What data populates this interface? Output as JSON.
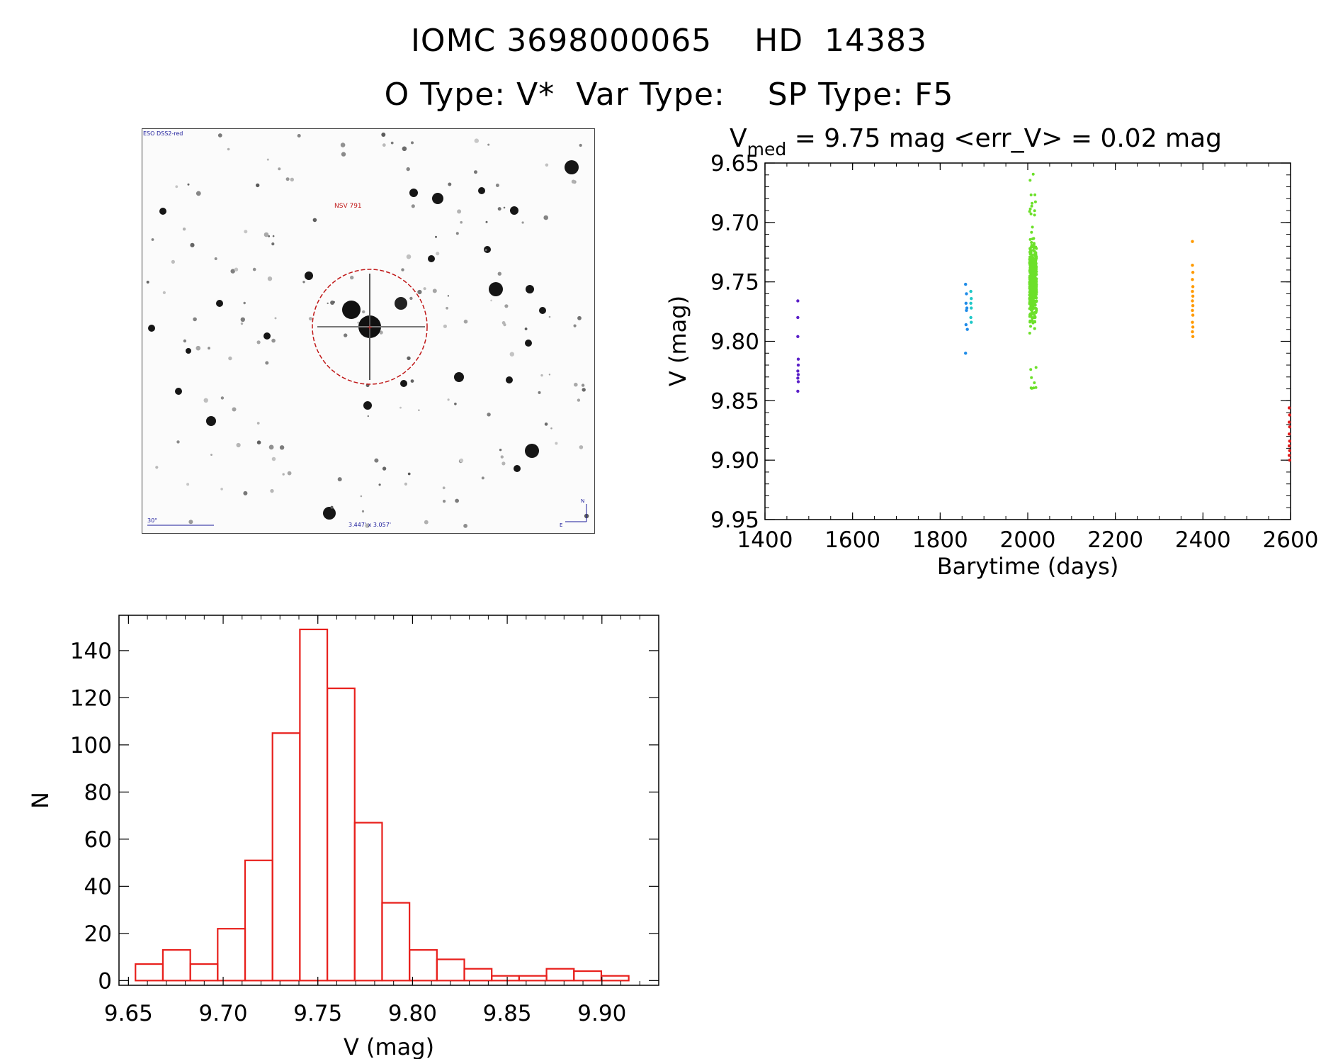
{
  "header": {
    "line1": "IOMC 3698000065    HD  14383",
    "line2": "O Type: V*  Var Type:    SP Type: F5"
  },
  "image_panel": {
    "survey_label": "ESO DSS2-red",
    "object_label": "NSV 791",
    "scale_label": "30\"",
    "fov_label": "3.447' x 3.057'",
    "north_label": "N",
    "east_label": "E"
  },
  "colors": {
    "histogram": "#e8201c",
    "circle": "#c01818",
    "survey_text": "#1a1a9a"
  },
  "chart_data": [
    {
      "type": "scatter",
      "title": "V",
      "title_sub": "med",
      "title_rest": " = 9.75 mag <err_V> = 0.02 mag",
      "xlabel": "Barytime (days)",
      "ylabel": "V (mag)",
      "xlim": [
        1400,
        2600
      ],
      "ylim": [
        9.95,
        9.65
      ],
      "y_inverted": true,
      "x_ticks": [
        "1400",
        "1600",
        "1800",
        "2000",
        "2200",
        "2400",
        "2600"
      ],
      "y_ticks": [
        "9.65",
        "9.70",
        "9.75",
        "9.80",
        "9.85",
        "9.90",
        "9.95"
      ],
      "series": [
        {
          "color": "#5a1fc8",
          "x": [
            1475,
            1475,
            1475,
            1476,
            1476,
            1475,
            1476,
            1475,
            1476,
            1475
          ],
          "y": [
            9.766,
            9.78,
            9.796,
            9.815,
            9.82,
            9.825,
            9.828,
            9.831,
            9.834,
            9.842
          ]
        },
        {
          "color": "#1f8ce8",
          "x": [
            1858,
            1860,
            1859,
            1861,
            1860,
            1859,
            1862,
            1858
          ],
          "y": [
            9.752,
            9.76,
            9.768,
            9.772,
            9.774,
            9.786,
            9.79,
            9.81
          ]
        },
        {
          "color": "#20c8c8",
          "x": [
            1870,
            1871,
            1870,
            1871,
            1870,
            1871
          ],
          "y": [
            9.758,
            9.764,
            9.768,
            9.772,
            9.78,
            9.784
          ]
        },
        {
          "color": "#ff9a00",
          "x": [
            2376,
            2376,
            2377,
            2376,
            2377,
            2376,
            2377,
            2376,
            2377,
            2376,
            2377,
            2376,
            2377,
            2376,
            2377
          ],
          "y": [
            9.716,
            9.736,
            9.742,
            9.748,
            9.754,
            9.758,
            9.762,
            9.766,
            9.77,
            9.774,
            9.778,
            9.784,
            9.788,
            9.792,
            9.796
          ]
        },
        {
          "color": "#e01a1a",
          "x": [
            2597,
            2598,
            2597,
            2598,
            2597,
            2598,
            2597,
            2598,
            2597,
            2598
          ],
          "y": [
            9.856,
            9.862,
            9.868,
            9.872,
            9.878,
            9.884,
            9.888,
            9.892,
            9.896,
            9.9
          ]
        }
      ],
      "dense_series": {
        "color": "#6ce02a",
        "x_center": 2012,
        "x_spread": 8,
        "y_min": 9.655,
        "y_max": 9.84,
        "y_median": 9.75,
        "count": 500
      }
    },
    {
      "type": "bar",
      "xlabel": "V (mag)",
      "ylabel": "N",
      "xlim": [
        9.645,
        9.93
      ],
      "ylim": [
        -2,
        155
      ],
      "x_ticks": [
        "9.65",
        "9.70",
        "9.75",
        "9.80",
        "9.85",
        "9.90"
      ],
      "y_ticks": [
        "0",
        "20",
        "40",
        "60",
        "80",
        "100",
        "120",
        "140"
      ],
      "bin_width": 0.01447,
      "bin_start": 9.6537,
      "values": [
        7,
        13,
        7,
        22,
        51,
        105,
        149,
        124,
        67,
        33,
        13,
        9,
        5,
        2,
        2,
        5,
        4,
        2
      ]
    }
  ]
}
